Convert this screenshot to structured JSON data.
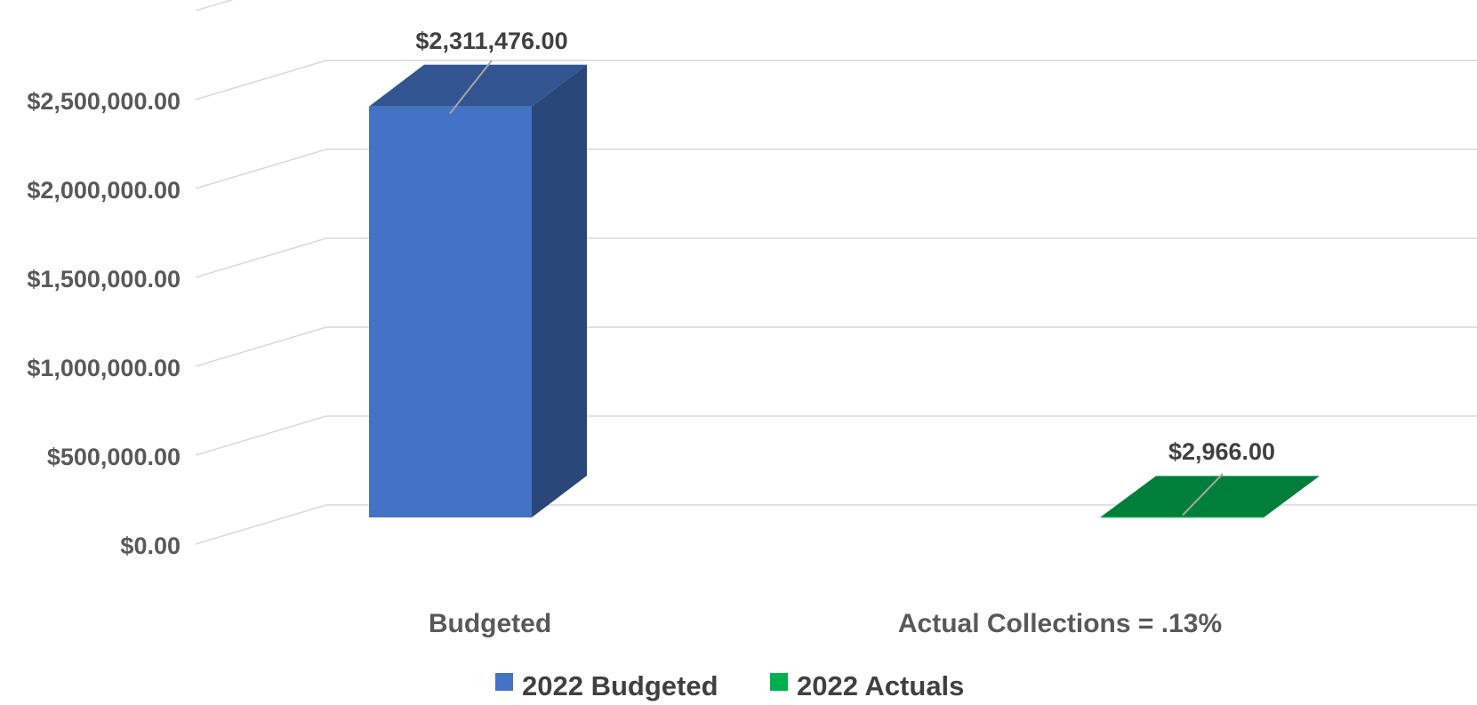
{
  "chart_data": {
    "type": "bar",
    "three_d": true,
    "categories": [
      "Budgeted",
      "Actual Collections = .13%"
    ],
    "series": [
      {
        "name": "2022 Budgeted",
        "color": "#4472C4",
        "values": [
          2311476.0,
          null
        ],
        "labels": [
          "$2,311,476.00",
          null
        ]
      },
      {
        "name": "2022 Actuals",
        "color": "#00B050",
        "values": [
          null,
          2966.0
        ],
        "labels": [
          null,
          "$2,966.00"
        ]
      }
    ],
    "y_ticks": [
      "$0.00",
      "$500,000.00",
      "$1,000,000.00",
      "$1,500,000.00",
      "$2,000,000.00",
      "$2,500,000.00"
    ],
    "ylim": [
      0,
      3000000
    ],
    "grid": true,
    "legend_position": "bottom"
  }
}
